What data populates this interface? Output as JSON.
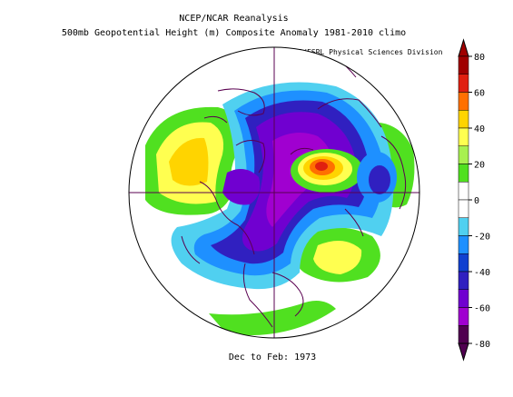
{
  "title": "NCEP/NCAR Reanalysis",
  "subtitle": "500mb Geopotential Height (m) Composite Anomaly 1981-2010 climo",
  "credit": "NOAA/ESRL Physical Sciences Division",
  "period": "Dec to Feb: 1973",
  "colorbar": {
    "labels": [
      "80",
      "60",
      "40",
      "20",
      "0",
      "-20",
      "-40",
      "-60",
      "-80"
    ],
    "colors": [
      "#a00000",
      "#e02010",
      "#ff7000",
      "#ffd400",
      "#ffff50",
      "#a8f050",
      "#50e020",
      "#ffffff",
      "#ffffff",
      "#50d0f0",
      "#1e90ff",
      "#1040d0",
      "#3020c0",
      "#7000d0",
      "#a000d0",
      "#500050"
    ]
  },
  "map": {
    "projection": "north-polar-stereographic",
    "land_color": "#5a0050"
  }
}
